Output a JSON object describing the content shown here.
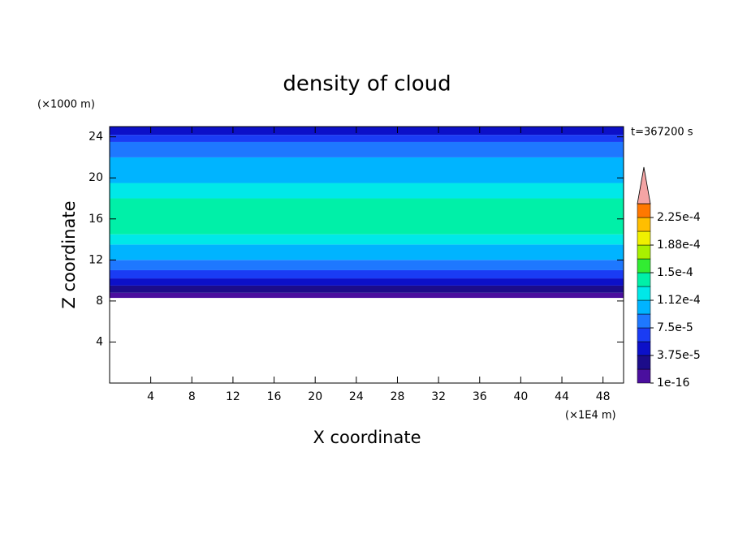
{
  "chart_data": {
    "type": "contour",
    "title": "density of cloud",
    "xlabel": "X coordinate",
    "ylabel": "Z coordinate",
    "x_unit": "(×1E4 m)",
    "y_unit": "(×1000 m)",
    "annotation": "t=367200 s",
    "xlim": [
      0,
      50
    ],
    "ylim": [
      0,
      25
    ],
    "xticks": [
      4,
      8,
      12,
      16,
      20,
      24,
      28,
      32,
      36,
      40,
      44,
      48
    ],
    "yticks": [
      4,
      8,
      12,
      16,
      20,
      24
    ],
    "profile": {
      "z": [
        8.3,
        8.8,
        9.5,
        10.2,
        11,
        12,
        13.5,
        14.5,
        18,
        19.5,
        22,
        23.5,
        24.2,
        25
      ],
      "values": [
        1e-05,
        2.8e-05,
        4.7e-05,
        6.5e-05,
        8.4e-05,
        0.000103,
        0.000122,
        0.00014,
        0.000122,
        0.000103,
        8.4e-05,
        6.5e-05,
        4.7e-05
      ]
    },
    "colorbar": {
      "levels": [
        1e-16,
        1.875e-05,
        3.75e-05,
        5.625e-05,
        7.5e-05,
        9.375e-05,
        0.0001125,
        0.00013125,
        0.00015,
        0.00016875,
        0.0001875,
        0.00020625,
        0.000225,
        0.00024375
      ],
      "colors": [
        "#4a0f9e",
        "#1c0c8a",
        "#0c10c8",
        "#1a3cf4",
        "#1e78ff",
        "#00b4ff",
        "#00e8e8",
        "#00f0a8",
        "#32ec32",
        "#a8f000",
        "#f0f000",
        "#ffbe00",
        "#ff7800"
      ],
      "extend_color": "#f4a4a4",
      "ticks": [
        {
          "value": 1e-16,
          "label": "1e-16"
        },
        {
          "value": 3.75e-05,
          "label": "3.75e-5"
        },
        {
          "value": 7.5e-05,
          "label": "7.5e-5"
        },
        {
          "value": 0.0001125,
          "label": "1.12e-4"
        },
        {
          "value": 0.00015,
          "label": "1.5e-4"
        },
        {
          "value": 0.0001875,
          "label": "1.88e-4"
        },
        {
          "value": 0.000225,
          "label": "2.25e-4"
        }
      ]
    }
  }
}
